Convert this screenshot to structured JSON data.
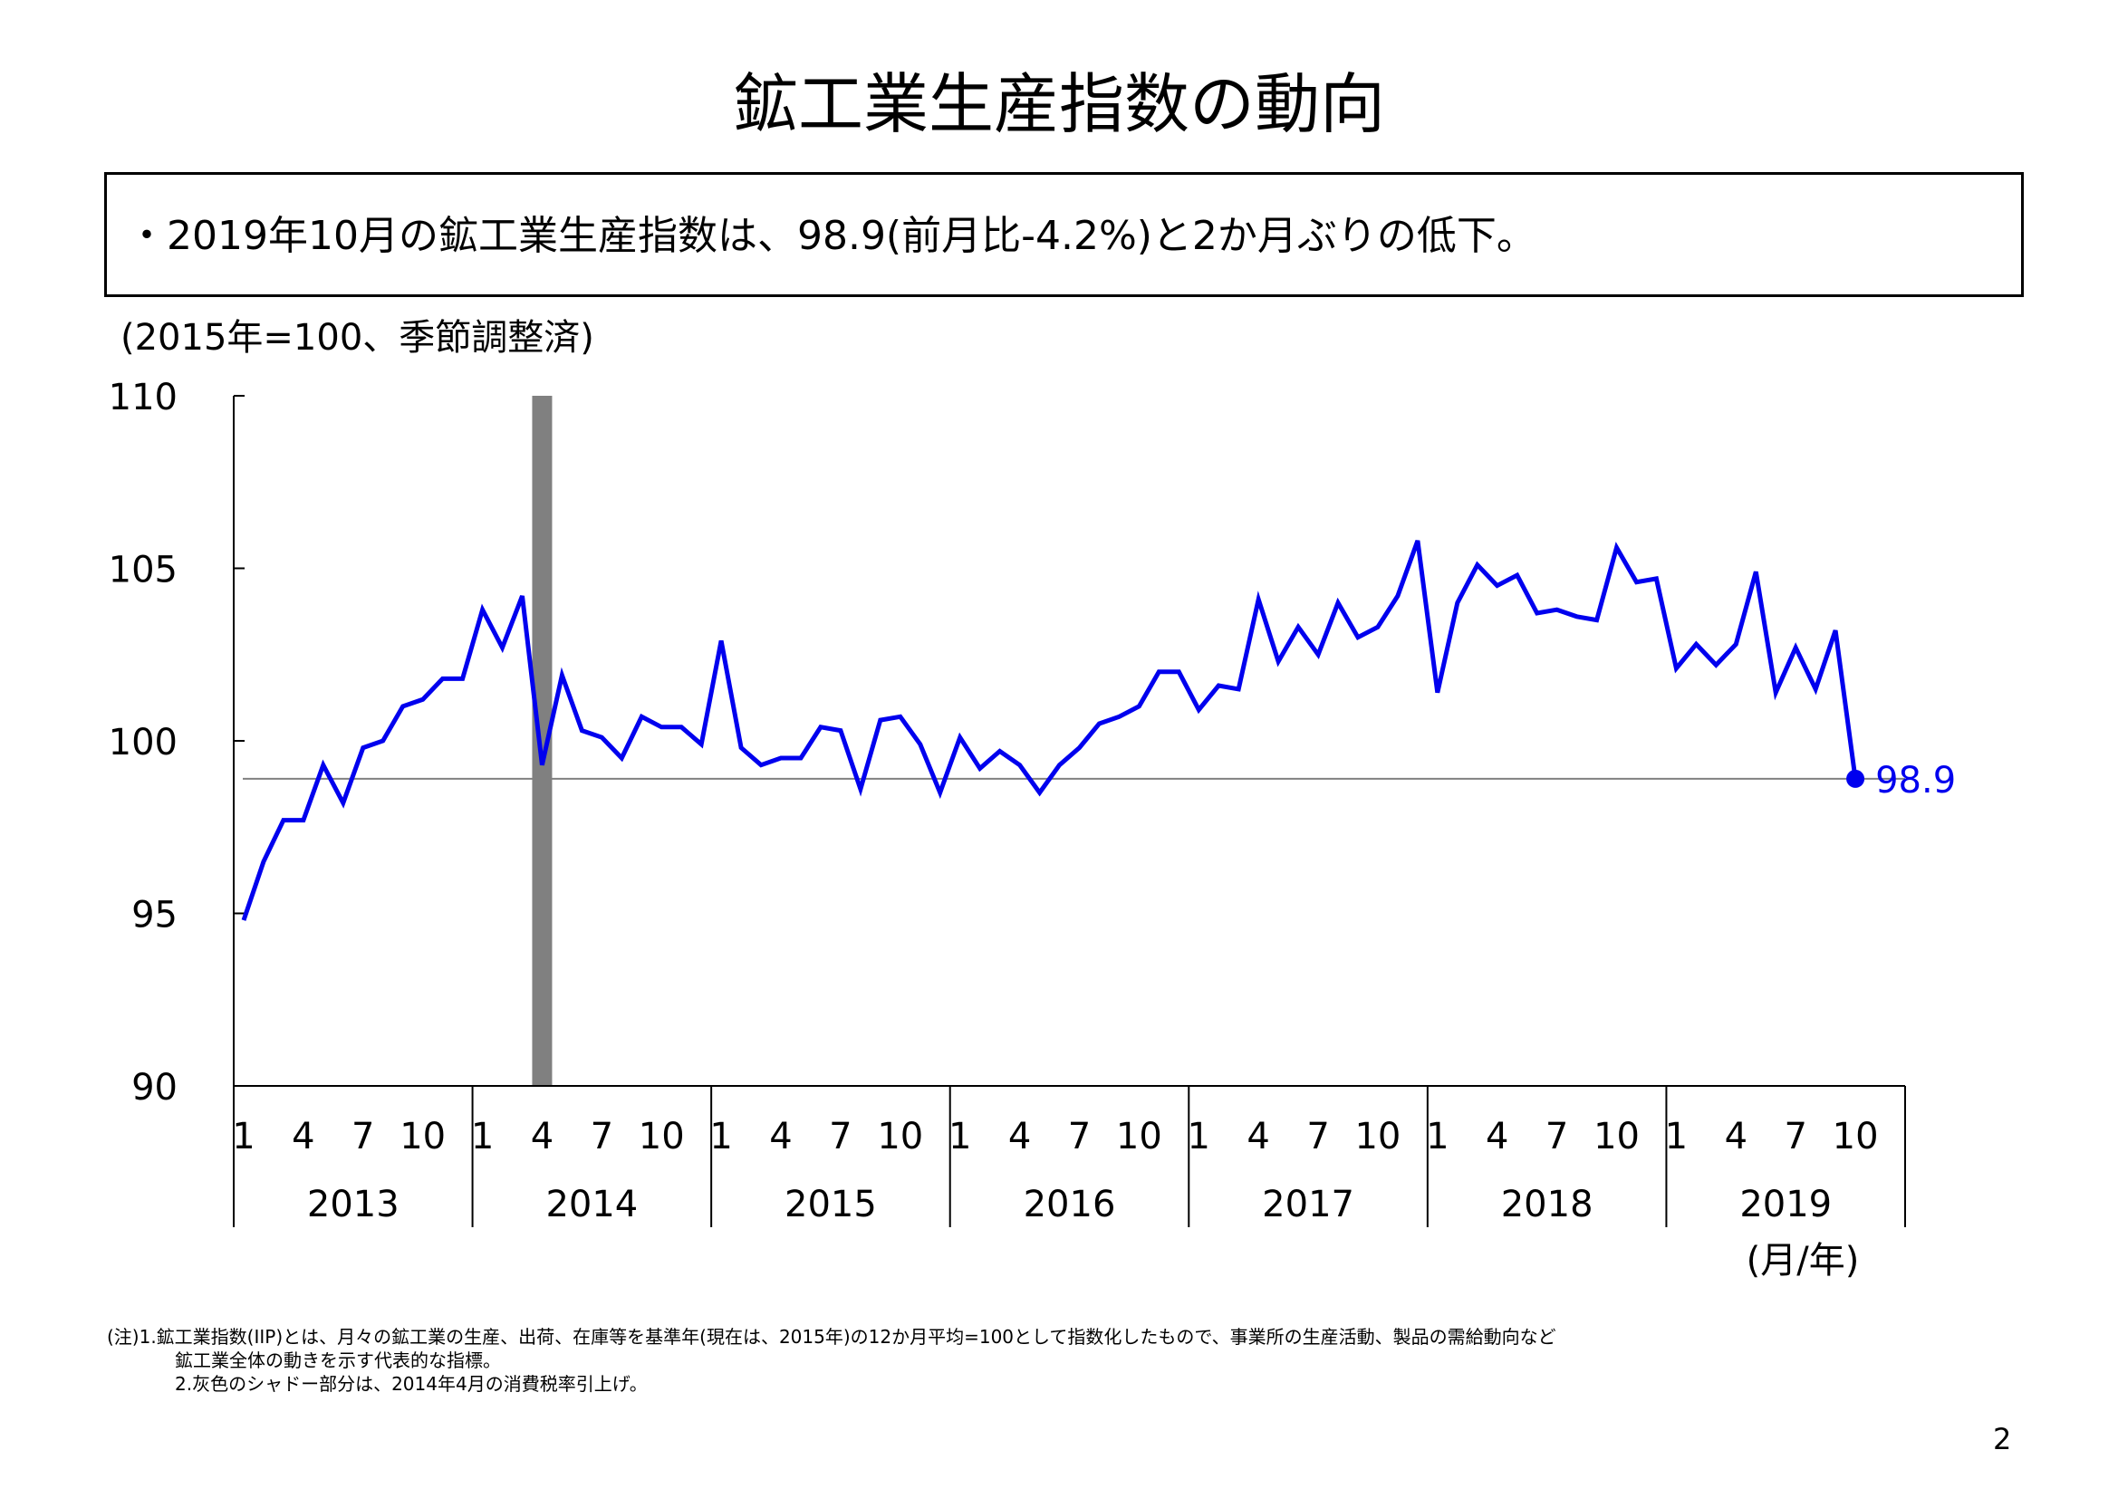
{
  "page": {
    "title": "鉱工業生産指数の動向",
    "summary": "・2019年10月の鉱工業生産指数は、98.9(前月比-4.2%)と2か月ぶりの低下。",
    "notes": [
      "(注)1.鉱工業指数(IIP)とは、月々の鉱工業の生産、出荷、在庫等を基準年(現在は、2015年)の12か月平均=100として指数化したもので、事業所の生産活動、製品の需給動向など",
      "鉱工業全体の動きを示す代表的な指標。",
      "2.灰色のシャドー部分は、2014年4月の消費税率引上げ。"
    ],
    "page_number": "2"
  },
  "chart_data": {
    "type": "line",
    "unit_label": "(2015年=100、季節調整済)",
    "xlabel": "(月/年)",
    "ylim": [
      90,
      110
    ],
    "y_ticks": [
      "90",
      "95",
      "100",
      "105",
      "110"
    ],
    "month_ticks": [
      "1",
      "4",
      "7",
      "10"
    ],
    "years": [
      "2013",
      "2014",
      "2015",
      "2016",
      "2017",
      "2018",
      "2019"
    ],
    "series_color": "#0000ee",
    "shade": {
      "period": "2014-04",
      "color": "#808080"
    },
    "reference_line": {
      "value": 98.9,
      "color": "#808080"
    },
    "last_point": {
      "period": "2019-10",
      "value": 98.9,
      "label": "98.9"
    },
    "series": [
      {
        "x_start": "2013-01",
        "values": [
          94.8,
          96.5,
          97.7,
          97.7,
          99.3,
          98.2,
          99.8,
          100.0,
          101.0,
          101.2,
          101.8,
          101.8,
          103.8,
          102.7,
          104.2,
          99.3,
          101.9,
          100.3,
          100.1,
          99.5,
          100.7,
          100.4,
          100.4,
          99.9,
          102.9,
          99.8,
          99.3,
          99.5,
          99.5,
          100.4,
          100.3,
          98.6,
          100.6,
          100.7,
          99.9,
          98.5,
          100.1,
          99.2,
          99.7,
          99.3,
          98.5,
          99.3,
          99.8,
          100.5,
          100.7,
          101.0,
          102.0,
          102.0,
          100.9,
          101.6,
          101.5,
          104.1,
          102.3,
          103.3,
          102.5,
          104.0,
          103.0,
          103.3,
          104.2,
          105.8,
          101.4,
          104.0,
          105.1,
          104.5,
          104.8,
          103.7,
          103.8,
          103.6,
          103.5,
          105.6,
          104.6,
          104.7,
          102.1,
          102.8,
          102.2,
          102.8,
          104.9,
          101.4,
          102.7,
          101.5,
          103.2,
          98.9
        ]
      }
    ]
  }
}
